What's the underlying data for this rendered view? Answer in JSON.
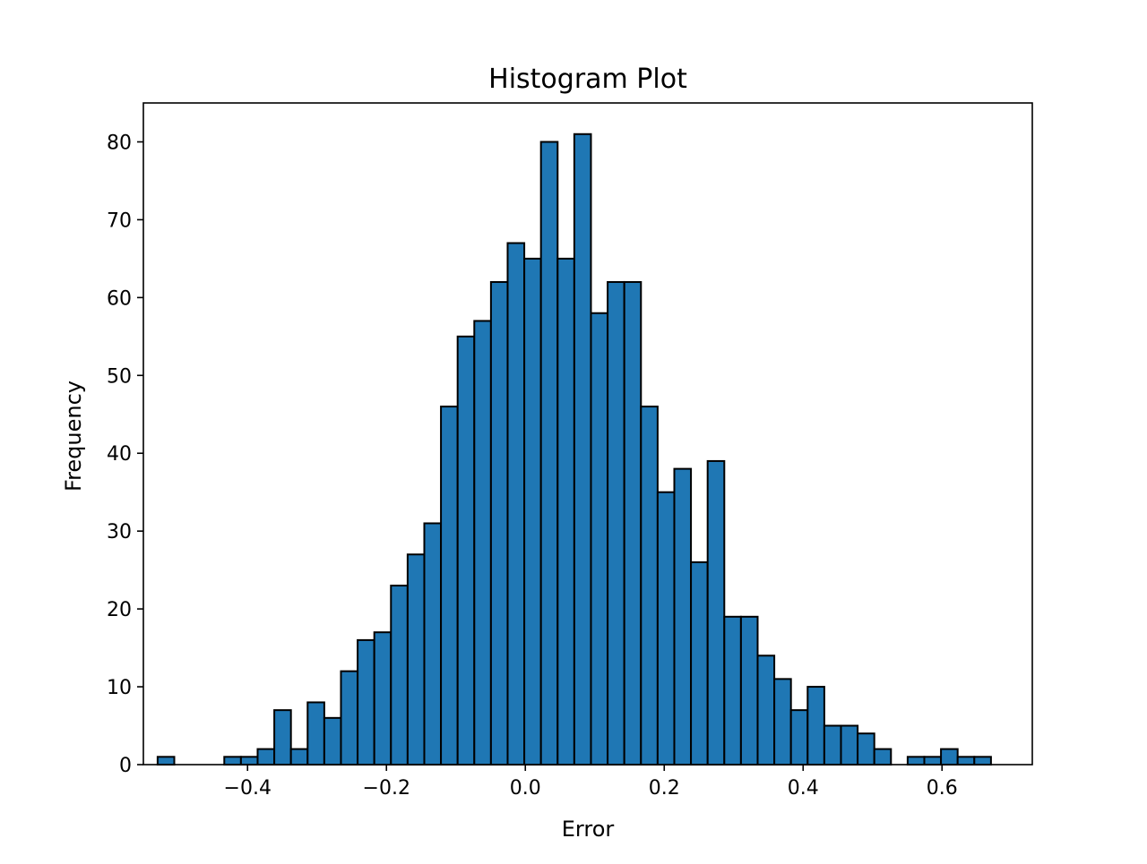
{
  "chart_data": {
    "type": "bar",
    "subtype": "histogram",
    "title": "Histogram Plot",
    "xlabel": "Error",
    "ylabel": "Frequency",
    "xlim": [
      -0.55,
      0.73
    ],
    "ylim": [
      0,
      85
    ],
    "x_ticks": [
      -0.4,
      -0.2,
      0.0,
      0.2,
      0.4,
      0.6
    ],
    "x_tick_labels": [
      "−0.4",
      "−0.2",
      "0.0",
      "0.2",
      "0.4",
      "0.6"
    ],
    "y_ticks": [
      0,
      10,
      20,
      30,
      40,
      50,
      60,
      70,
      80
    ],
    "y_tick_labels": [
      "0",
      "10",
      "20",
      "30",
      "40",
      "50",
      "60",
      "70",
      "80"
    ],
    "bin_start": -0.5295,
    "bin_width": 0.024,
    "values": [
      1,
      0,
      0,
      0,
      1,
      1,
      2,
      7,
      2,
      8,
      6,
      12,
      16,
      17,
      23,
      27,
      31,
      46,
      55,
      57,
      62,
      67,
      65,
      80,
      65,
      81,
      58,
      62,
      62,
      46,
      35,
      38,
      26,
      39,
      19,
      19,
      14,
      11,
      7,
      10,
      5,
      5,
      4,
      2,
      0,
      1,
      1,
      2,
      1,
      1
    ],
    "bar_color": "#1f77b4",
    "edge_color": "#000000",
    "grid": false,
    "legend": "none"
  }
}
